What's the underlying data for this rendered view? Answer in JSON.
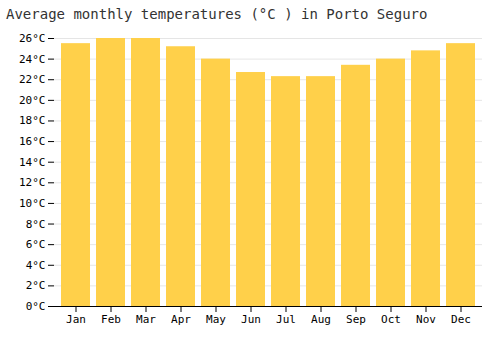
{
  "chart_data": {
    "type": "bar",
    "title": "Average monthly temperatures (°C ) in Porto Seguro",
    "categories": [
      "Jan",
      "Feb",
      "Mar",
      "Apr",
      "May",
      "Jun",
      "Jul",
      "Aug",
      "Sep",
      "Oct",
      "Nov",
      "Dec"
    ],
    "values": [
      25.5,
      26.0,
      26.0,
      25.2,
      24.0,
      22.7,
      22.3,
      22.3,
      23.4,
      24.0,
      24.8,
      25.5
    ],
    "color": "#FFD04A",
    "ylim": [
      0,
      26
    ],
    "yticks": [
      {
        "value": 0,
        "label": "0°C"
      },
      {
        "value": 2,
        "label": "2°C"
      },
      {
        "value": 4,
        "label": "4°C"
      },
      {
        "value": 6,
        "label": "6°C"
      },
      {
        "value": 8,
        "label": "8°C"
      },
      {
        "value": 10,
        "label": "10°C"
      },
      {
        "value": 12,
        "label": "12°C"
      },
      {
        "value": 14,
        "label": "14°C"
      },
      {
        "value": 16,
        "label": "16°C"
      },
      {
        "value": 18,
        "label": "18°C"
      },
      {
        "value": 20,
        "label": "20°C"
      },
      {
        "value": 22,
        "label": "22°C"
      },
      {
        "value": 24,
        "label": "24°C"
      },
      {
        "value": 26,
        "label": "26°C"
      }
    ],
    "grid": true
  }
}
